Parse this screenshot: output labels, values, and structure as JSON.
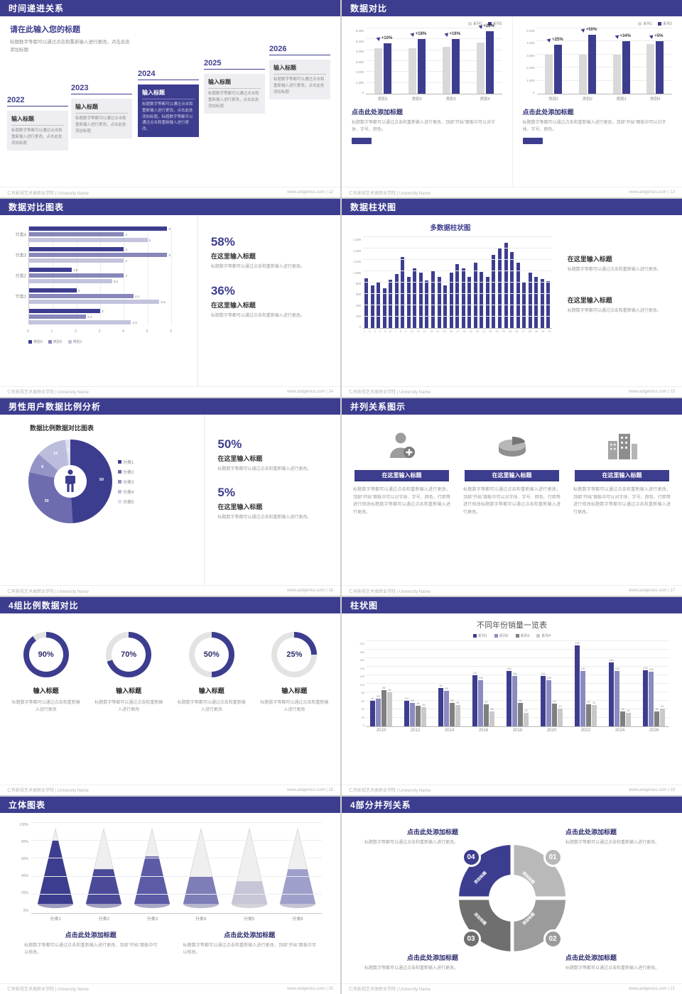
{
  "meta": {
    "footer_left": "仁有影视艺术类职业学院 | University Name"
  },
  "colors": {
    "primary": "#3d3d8f",
    "mid_purple": "#8787bb",
    "light_purple": "#c3c3dd",
    "series_gray": "#d9d9d9",
    "dark_gray": "#7f7f7f",
    "light_gray": "#c9c9c9"
  },
  "slides": {
    "s1": {
      "title": "时间递进关系",
      "footer_right": "www.aotgenius.com | 12",
      "heading": "请在此输入您的标题",
      "heading_text": "标题数字等都可以通过点击和重新输入进行更改，点击此处添加标题",
      "items": [
        {
          "year": "2022",
          "label": "输入标题",
          "text": "标题数字等都可以通过点击和重新输入进行更改，点击此处添加标题"
        },
        {
          "year": "2023",
          "label": "输入标题",
          "text": "标题数字等都可以通过点击和重新输入进行更改，点击此处添加标题"
        },
        {
          "year": "2024",
          "label": "输入标题",
          "text": "标题数字等都可以通过点击和重新输入进行更改，点击此处添加标题，标题数字等都可以通过点击和重新输入进行更改。"
        },
        {
          "year": "2025",
          "label": "输入标题",
          "text": "标题数字等都可以通过点击和重新输入进行更改，点击此处添加标题"
        },
        {
          "year": "2026",
          "label": "输入标题",
          "text": "标题数字等都可以通过点击和重新输入进行更改，点击此处添加标题"
        }
      ]
    },
    "s2": {
      "title": "数据对比",
      "footer_right": "www.aotgenius.com | 13",
      "charts": [
        {
          "type": "bar",
          "categories": [
            "类别1",
            "类别2",
            "类别3",
            "类别4"
          ],
          "series": [
            {
              "name": "系列1",
              "values": [
                4200,
                4200,
                4300,
                4700
              ]
            },
            {
              "name": "系列2",
              "values": [
                4600,
                5000,
                5000,
                5750
              ]
            }
          ],
          "deltas": [
            "+10%",
            "+18%",
            "+16%",
            "+22%"
          ],
          "ymax": 6000,
          "yticks": [
            "6,000",
            "5,000",
            "4,000",
            "3,000",
            "2,000",
            "1,000",
            "0"
          ],
          "caption": "点击此处添加标题",
          "caption_text": "标题数字等都可以通过点击和重新输入进行更改，顶部“开始”面板中可以对字体、字号、颜色。"
        },
        {
          "type": "bar",
          "categories": [
            "类别1",
            "类别2",
            "类别3",
            "类别4"
          ],
          "series": [
            {
              "name": "系列1",
              "values": [
                3000,
                3000,
                3000,
                3800
              ]
            },
            {
              "name": "系列2",
              "values": [
                3750,
                4500,
                4000,
                4000
              ]
            }
          ],
          "deltas": [
            "+25%",
            "+50%",
            "+34%",
            "+5%"
          ],
          "ymax": 5000,
          "yticks": [
            "5,000",
            "4,000",
            "3,000",
            "2,000",
            "1,000",
            "0"
          ],
          "caption": "点击此处添加标题",
          "caption_text": "标题数字等都可以通过点击和重新输入进行更改，顶部“开始”面板中可以对字体、字号、颜色。"
        }
      ]
    },
    "s3": {
      "title": "数据对比图表",
      "footer_right": "www.aotgenius.com | 14",
      "chart": {
        "type": "bar",
        "legend": [
          "类别3",
          "类别2",
          "类别1"
        ],
        "groups": [
          {
            "label": "分类4",
            "values": [
              6,
              4,
              5
            ]
          },
          {
            "label": "分类3",
            "values": [
              4,
              6,
              4
            ]
          },
          {
            "label": "分类2",
            "values": [
              1.8,
              4,
              3.5
            ]
          },
          {
            "label": "分类1",
            "values": [
              2,
              4.4,
              5.5
            ]
          },
          {
            "label": "",
            "values": [
              3,
              2.4,
              4.3
            ]
          }
        ],
        "xmax": 6,
        "xticks": [
          "0",
          "1",
          "2",
          "3",
          "4",
          "5",
          "6"
        ]
      },
      "stats": [
        {
          "value": "58%",
          "label": "在这里输入标题",
          "text": "标题数字等都可以通过点击和重新输入进行更改。"
        },
        {
          "value": "36%",
          "label": "在这里输入标题",
          "text": "标题数字等都可以通过点击和重新输入进行更改。"
        }
      ]
    },
    "s4": {
      "title": "数据柱状图",
      "footer_right": "www.aotgenius.com | 15",
      "chart": {
        "type": "bar",
        "title": "多数据柱状图",
        "labels": [
          "1",
          "2",
          "3",
          "4",
          "5",
          "6",
          "7",
          "8",
          "9",
          "10",
          "11",
          "12",
          "13",
          "14",
          "15",
          "16",
          "17",
          "18",
          "19",
          "20",
          "21",
          "22",
          "23",
          "24",
          "25",
          "26",
          "27",
          "28",
          "29",
          "30",
          "31"
        ],
        "values": [
          880,
          760,
          820,
          700,
          860,
          950,
          1250,
          900,
          1060,
          980,
          840,
          1010,
          900,
          760,
          980,
          1130,
          1060,
          910,
          1150,
          990,
          900,
          1290,
          1420,
          1500,
          1340,
          1150,
          820,
          980,
          900,
          870,
          830
        ],
        "ymax": 1600,
        "yticks": [
          "1,600",
          "1,400",
          "1,200",
          "1,000",
          "800",
          "600",
          "400",
          "200",
          "0"
        ]
      },
      "stats": [
        {
          "label": "在这里输入标题",
          "text": "标题数字等都可以通过点击和重新输入进行更改。"
        },
        {
          "label": "在这里输入标题",
          "text": "标题数字等都可以通过点击和重新输入进行更改。"
        }
      ]
    },
    "s5": {
      "title": "男性用户数据比例分析",
      "footer_right": "www.aotgenius.com | 16",
      "chart": {
        "type": "pie",
        "title": "数据比例数据对比图表",
        "segments": [
          {
            "label": "分类1",
            "value": 50,
            "color": "#3d3d8f"
          },
          {
            "label": "分类2",
            "value": 30,
            "color": "#6c6cae"
          },
          {
            "label": "分类3",
            "value": 8,
            "color": "#9494c7"
          },
          {
            "label": "分类4",
            "value": 12,
            "color": "#bcbcdc"
          },
          {
            "label": "分类5",
            "value": 2,
            "color": "#dedeef"
          }
        ]
      },
      "stats": [
        {
          "value": "50%",
          "label": "在这里输入标题",
          "text": "标题数字等都可以通过点击和重新输入进行更改。"
        },
        {
          "value": "5%",
          "label": "在这里输入标题",
          "text": "标题数字等都可以通过点击和重新输入进行更改。"
        }
      ]
    },
    "s6": {
      "title": "并列关系图示",
      "footer_right": "www.aotgenius.com | 17",
      "items": [
        {
          "icon": "medical-person-icon",
          "button": "在这里输入标题",
          "text": "标题数字等都可以通过点击和重新输入进行更改，顶部“开始”面板中可以对字体、字号、颜色、行距等进行修改标题数字等都可以通过点击和重新输入进行更改。"
        },
        {
          "icon": "pie-3d-icon",
          "button": "在这里输入标题",
          "text": "标题数字等都可以通过点击和重新输入进行更改，顶部“开始”面板中可以对字体、字号、颜色、行距等进行修改标题数字等都可以通过点击和重新输入进行更改。"
        },
        {
          "icon": "building-icon",
          "button": "在这里输入标题",
          "text": "标题数字等都可以通过点击和重新输入进行更改，顶部“开始”面板中可以对字体、字号、颜色、行距等进行修改标题数字等都可以通过点击和重新输入进行更改。"
        }
      ]
    },
    "s7": {
      "title": "4组比例数据对比",
      "footer_right": "www.aotgenius.com | 18",
      "items": [
        {
          "percent": 90,
          "display": "90%",
          "label": "输入标题",
          "text": "标题数字等都可以通过点击和重新输入进行更改"
        },
        {
          "percent": 70,
          "display": "70%",
          "label": "输入标题",
          "text": "标题数字等都可以通过点击和重新输入进行更改"
        },
        {
          "percent": 50,
          "display": "50%",
          "label": "输入标题",
          "text": "标题数字等都可以通过点击和重新输入进行更改"
        },
        {
          "percent": 25,
          "display": "25%",
          "label": "输入标题",
          "text": "标题数字等都可以通过点击和重新输入进行更改"
        }
      ]
    },
    "s8": {
      "title": "柱状图",
      "footer_right": "www.aotgenius.com | 19",
      "chart": {
        "type": "bar",
        "title": "不同年份销量一览表",
        "categories": [
          "2010",
          "2012",
          "2014",
          "2016",
          "2018",
          "2020",
          "2022",
          "2024",
          "2026"
        ],
        "series": [
          {
            "name": "系列1",
            "color": "#3d3d8f",
            "values": [
              60,
              60,
              90,
              120,
              130,
              118,
              190,
              150,
              132
            ]
          },
          {
            "name": "系列2",
            "color": "#8b8bc0",
            "values": [
              65,
              55,
              84,
              108,
              118,
              108,
              130,
              130,
              128
            ]
          },
          {
            "name": "系列3",
            "color": "#7f7f7f",
            "values": [
              85,
              48,
              55,
              52,
              55,
              53,
              52,
              36,
              36
            ]
          },
          {
            "name": "系列4",
            "color": "#c9c9c9",
            "values": [
              80,
              45,
              50,
              36,
              32,
              42,
              51,
              32,
              42
            ]
          }
        ],
        "ymax": 200,
        "yticks": [
          "200",
          "180",
          "160",
          "140",
          "120",
          "100",
          "80",
          "60",
          "40",
          "20",
          "0"
        ]
      }
    },
    "s9": {
      "title": "立体图表",
      "footer_right": "www.aotgenius.com | 20",
      "chart": {
        "type": "bar",
        "categories": [
          "分类1",
          "分类2",
          "分类3",
          "分类4",
          "分类5",
          "分类6"
        ],
        "levels": [
          0.84,
          0.46,
          0.63,
          0.36,
          0.3,
          0.46
        ],
        "fills": [
          "#3d3d8f",
          "#4a4a99",
          "#5b5ba6",
          "#7d7db8",
          "#c6c6d8",
          "#9f9fcb"
        ],
        "yticks": [
          "100%",
          "80%",
          "60%",
          "40%",
          "20%",
          "0%"
        ]
      },
      "blocks": [
        {
          "label": "点击此处添加标题",
          "text": "标题数字等都可以通过点击和重新输入进行更改，顶部“开始”面板中可以修改。"
        },
        {
          "label": "点击此处添加标题",
          "text": "标题数字等都可以通过点击和重新输入进行更改，顶部“开始”面板中可以修改。"
        }
      ]
    },
    "s10": {
      "title": "4部分并列关系",
      "footer_right": "www.aotgenius.com | 21",
      "ring": {
        "numbers": [
          "01",
          "02",
          "03",
          "04"
        ],
        "labels": [
          "添加标题",
          "添加标题",
          "添加标题",
          "添加标题"
        ],
        "colors": [
          "#b9b9b9",
          "#9b9b9b",
          "#6f6f6f",
          "#3d3d8f"
        ]
      },
      "blocks": [
        {
          "label": "点击此处添加标题",
          "text": "标题数字等都可以通过点击和重新输入进行更改。"
        },
        {
          "label": "点击此处添加标题",
          "text": "标题数字等都可以通过点击和重新输入进行更改。"
        },
        {
          "label": "点击此处添加标题",
          "text": "标题数字等都可以通过点击和重新输入进行更改。"
        },
        {
          "label": "点击此处添加标题",
          "text": "标题数字等都可以通过点击和重新输入进行更改。"
        }
      ]
    }
  }
}
